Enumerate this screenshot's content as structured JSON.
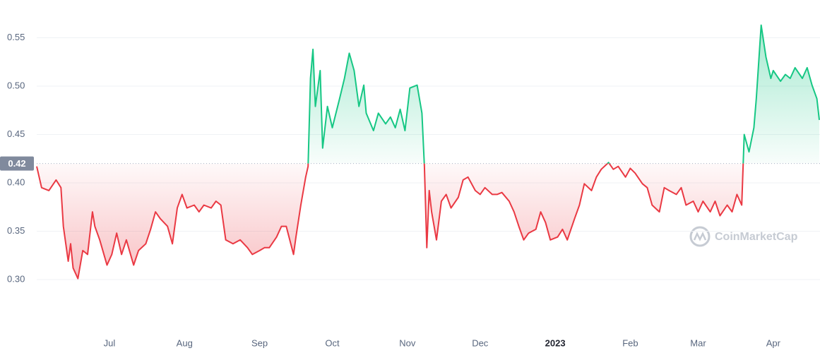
{
  "chart_data": {
    "type": "line",
    "x": [
      0,
      2,
      5,
      8,
      10,
      11,
      13,
      14,
      15,
      17,
      19,
      21,
      23,
      24,
      26,
      29,
      31,
      33,
      35,
      37,
      40,
      42,
      45,
      47,
      49,
      51,
      54,
      56,
      58,
      60,
      62,
      65,
      67,
      69,
      72,
      74,
      76,
      78,
      81,
      84,
      87,
      89,
      92,
      94,
      96,
      99,
      101,
      103,
      106,
      107,
      109,
      111,
      112,
      113,
      114,
      115,
      117,
      118,
      120,
      122,
      125,
      127,
      129,
      131,
      133,
      135,
      136,
      139,
      141,
      144,
      146,
      148,
      150,
      152,
      154,
      157,
      159,
      160,
      161,
      162,
      163,
      165,
      167,
      169,
      171,
      174,
      176,
      178,
      181,
      183,
      185,
      188,
      190,
      192,
      195,
      197,
      199,
      201,
      203,
      206,
      208,
      210,
      212,
      215,
      217,
      219,
      222,
      224,
      226,
      229,
      231,
      233,
      236,
      238,
      240,
      243,
      245,
      247,
      250,
      252,
      254,
      257,
      259,
      261,
      264,
      266,
      268,
      271,
      273,
      275,
      278,
      280,
      282,
      285,
      287,
      289,
      291,
      292,
      294,
      296,
      297,
      299,
      301,
      303,
      304,
      307,
      309,
      311,
      313,
      316,
      318,
      320,
      322,
      323
    ],
    "values": [
      0.417,
      0.395,
      0.392,
      0.403,
      0.395,
      0.355,
      0.319,
      0.337,
      0.312,
      0.301,
      0.33,
      0.326,
      0.37,
      0.355,
      0.341,
      0.315,
      0.326,
      0.348,
      0.326,
      0.341,
      0.315,
      0.33,
      0.337,
      0.352,
      0.37,
      0.363,
      0.355,
      0.337,
      0.374,
      0.388,
      0.374,
      0.377,
      0.37,
      0.377,
      0.374,
      0.381,
      0.377,
      0.341,
      0.337,
      0.341,
      0.333,
      0.326,
      0.33,
      0.333,
      0.333,
      0.344,
      0.355,
      0.355,
      0.326,
      0.344,
      0.377,
      0.406,
      0.417,
      0.508,
      0.538,
      0.479,
      0.516,
      0.436,
      0.479,
      0.457,
      0.487,
      0.508,
      0.534,
      0.516,
      0.479,
      0.501,
      0.472,
      0.454,
      0.472,
      0.461,
      0.468,
      0.457,
      0.476,
      0.454,
      0.498,
      0.501,
      0.472,
      0.417,
      0.333,
      0.392,
      0.37,
      0.341,
      0.381,
      0.388,
      0.374,
      0.385,
      0.403,
      0.406,
      0.392,
      0.388,
      0.395,
      0.388,
      0.388,
      0.39,
      0.381,
      0.37,
      0.355,
      0.341,
      0.348,
      0.352,
      0.37,
      0.359,
      0.341,
      0.344,
      0.352,
      0.341,
      0.363,
      0.377,
      0.399,
      0.392,
      0.406,
      0.414,
      0.421,
      0.414,
      0.417,
      0.406,
      0.415,
      0.41,
      0.399,
      0.395,
      0.377,
      0.37,
      0.395,
      0.392,
      0.388,
      0.395,
      0.377,
      0.381,
      0.37,
      0.381,
      0.37,
      0.381,
      0.366,
      0.377,
      0.37,
      0.388,
      0.377,
      0.45,
      0.432,
      0.457,
      0.487,
      0.563,
      0.53,
      0.508,
      0.516,
      0.505,
      0.512,
      0.508,
      0.519,
      0.508,
      0.519,
      0.501,
      0.487,
      0.465
    ],
    "baseline": 0.42,
    "color_above": "#16c784",
    "color_below": "#ea3943",
    "xlim": [
      0,
      323
    ],
    "xticks": [
      {
        "value": 30,
        "label": "Jul"
      },
      {
        "value": 61,
        "label": "Aug"
      },
      {
        "value": 92,
        "label": "Sep"
      },
      {
        "value": 122,
        "label": "Oct"
      },
      {
        "value": 153,
        "label": "Nov"
      },
      {
        "value": 183,
        "label": "Dec"
      },
      {
        "value": 214,
        "label": "2023"
      },
      {
        "value": 245,
        "label": "Feb"
      },
      {
        "value": 273,
        "label": "Mar"
      },
      {
        "value": 304,
        "label": "Apr"
      }
    ],
    "ylim": [
      0.246,
      0.589
    ],
    "yticks": [
      {
        "value": 0.3,
        "label": "0.30"
      },
      0.35,
      {
        "value": 0.4,
        "label": "0.40"
      },
      0.45,
      {
        "value": 0.5,
        "label": "0.50"
      },
      0.55
    ],
    "grid": true,
    "watermark": "CoinMarketCap"
  }
}
